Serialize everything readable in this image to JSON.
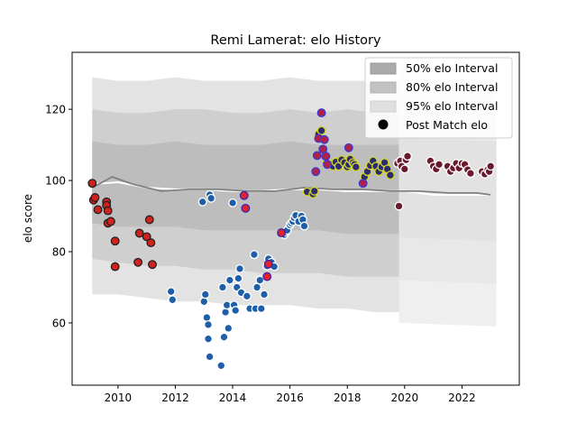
{
  "chart_data": {
    "type": "scatter",
    "title": "Remi Lamerat: elo History",
    "xlabel": "",
    "ylabel": "elo score",
    "xlim": [
      2008.4,
      2024.0
    ],
    "ylim": [
      42.5,
      136.0
    ],
    "xticks": [
      2010,
      2012,
      2014,
      2016,
      2018,
      2020,
      2022
    ],
    "yticks": [
      60,
      80,
      100,
      120
    ],
    "legend": {
      "position": "top-right",
      "entries": [
        "50% elo Interval",
        "80% elo Interval",
        "95% elo Interval",
        "Post Match elo"
      ]
    },
    "bands": [
      {
        "name": "95% elo Interval",
        "x": [
          2009.1,
          2010,
          2011,
          2012,
          2013,
          2014,
          2015,
          2016,
          2017,
          2018,
          2019,
          2019.8
        ],
        "lower": [
          68,
          68,
          67,
          66,
          66,
          65,
          65,
          65,
          64,
          64,
          63,
          63
        ],
        "upper": [
          129,
          128,
          128,
          129,
          128,
          128,
          128,
          129,
          128,
          128,
          128,
          128
        ]
      },
      {
        "name": "80% elo Interval",
        "x": [
          2009.1,
          2010,
          2011,
          2012,
          2013,
          2014,
          2015,
          2016,
          2017,
          2018,
          2019,
          2019.8
        ],
        "lower": [
          78,
          77,
          76,
          76,
          75,
          75,
          74,
          74,
          74,
          73,
          73,
          73
        ],
        "upper": [
          120,
          119,
          119,
          120,
          120,
          119,
          119,
          120,
          119,
          120,
          119,
          119
        ]
      },
      {
        "name": "50% elo Interval",
        "x": [
          2009.1,
          2010,
          2011,
          2012,
          2013,
          2014,
          2015,
          2016,
          2017,
          2018,
          2019,
          2019.8
        ],
        "lower": [
          88,
          87,
          87,
          87,
          86,
          86,
          86,
          86,
          86,
          85,
          85,
          85
        ],
        "upper": [
          111,
          110,
          110,
          111,
          110,
          110,
          110,
          111,
          110,
          110,
          110,
          110
        ]
      }
    ],
    "faint_bands": [
      {
        "x": [
          2019.8,
          2023.2
        ],
        "lower": [
          60,
          59
        ],
        "upper": [
          132,
          131
        ]
      },
      {
        "x": [
          2019.8,
          2023.2
        ],
        "lower": [
          72,
          71
        ],
        "upper": [
          124,
          123
        ]
      },
      {
        "x": [
          2019.8,
          2023.2
        ],
        "lower": [
          84,
          83
        ],
        "upper": [
          112,
          111
        ]
      }
    ],
    "mean_line": {
      "x": [
        2009.1,
        2009.8,
        2010.5,
        2011.5,
        2012.5,
        2013.5,
        2014.5,
        2015.5,
        2016.5,
        2017.5,
        2018.5,
        2019.5,
        2020.5,
        2021.5,
        2022.5,
        2023.0
      ],
      "y": [
        98,
        101,
        99,
        97,
        97.5,
        97.5,
        97,
        97,
        98,
        97.5,
        97.5,
        97,
        97,
        96.5,
        96.5,
        96
      ]
    },
    "mean_line_2": {
      "x": [
        2009.1,
        2010,
        2011,
        2012,
        2013,
        2014,
        2015,
        2016,
        2017,
        2018,
        2019,
        2020,
        2021,
        2022,
        2023.0
      ],
      "y": [
        99,
        99.5,
        98,
        97.5,
        97.5,
        97,
        97,
        97.5,
        97.5,
        97,
        97,
        97,
        96,
        96,
        96
      ]
    },
    "series": [
      {
        "name": "",
        "fill": "#d0211c",
        "edge": "#222222",
        "points": [
          [
            2009.1,
            99.2
          ],
          [
            2009.15,
            94.5
          ],
          [
            2009.2,
            95.2
          ],
          [
            2009.3,
            91.8
          ],
          [
            2009.6,
            94.0
          ],
          [
            2009.6,
            93.0
          ],
          [
            2009.65,
            91.5
          ],
          [
            2009.65,
            88.0
          ],
          [
            2009.75,
            88.5
          ],
          [
            2009.9,
            83.0
          ],
          [
            2009.9,
            75.8
          ],
          [
            2010.7,
            77.0
          ],
          [
            2010.75,
            85.2
          ],
          [
            2011.0,
            84.2
          ],
          [
            2011.1,
            89.0
          ],
          [
            2011.15,
            82.5
          ],
          [
            2011.2,
            76.4
          ]
        ]
      },
      {
        "name": "",
        "fill": "#1f5fa8",
        "edge": "#ffffff",
        "points": [
          [
            2011.85,
            68.8
          ],
          [
            2011.9,
            66.5
          ],
          [
            2012.95,
            94.0
          ],
          [
            2013.0,
            66.0
          ],
          [
            2013.05,
            68.0
          ],
          [
            2013.1,
            61.5
          ],
          [
            2013.15,
            59.5
          ],
          [
            2013.15,
            55.5
          ],
          [
            2013.2,
            96.0
          ],
          [
            2013.2,
            50.5
          ],
          [
            2013.25,
            95.0
          ],
          [
            2013.6,
            48.0
          ],
          [
            2013.65,
            70.0
          ],
          [
            2013.7,
            56.0
          ],
          [
            2013.75,
            63.0
          ],
          [
            2013.8,
            65.0
          ],
          [
            2013.85,
            58.5
          ],
          [
            2013.9,
            72.0
          ],
          [
            2014.0,
            93.7
          ],
          [
            2014.05,
            65.0
          ],
          [
            2014.1,
            63.5
          ],
          [
            2014.15,
            70.0
          ],
          [
            2014.2,
            72.5
          ],
          [
            2014.25,
            75.2
          ],
          [
            2014.3,
            68.5
          ],
          [
            2014.5,
            67.5
          ],
          [
            2014.6,
            64.0
          ],
          [
            2014.75,
            79.2
          ],
          [
            2014.8,
            64.0
          ],
          [
            2014.85,
            70.0
          ],
          [
            2014.95,
            72.0
          ],
          [
            2015.0,
            64.0
          ],
          [
            2015.1,
            68.0
          ],
          [
            2015.2,
            76.0
          ],
          [
            2015.25,
            78.0
          ],
          [
            2015.35,
            77.0
          ],
          [
            2015.45,
            75.8
          ],
          [
            2015.8,
            84.8
          ],
          [
            2015.85,
            85.5
          ],
          [
            2015.9,
            86.0
          ],
          [
            2016.0,
            87.5
          ],
          [
            2016.05,
            88.0
          ],
          [
            2016.1,
            88.5
          ],
          [
            2016.15,
            89.5
          ],
          [
            2016.2,
            90.2
          ],
          [
            2016.3,
            88.5
          ],
          [
            2016.4,
            90.0
          ],
          [
            2016.45,
            89.0
          ],
          [
            2016.5,
            87.2
          ]
        ]
      },
      {
        "name": "",
        "fill": "#e2232a",
        "edge": "#3d22b0",
        "points": [
          [
            2014.4,
            95.8
          ],
          [
            2014.45,
            92.2
          ],
          [
            2015.2,
            73.0
          ],
          [
            2015.25,
            76.5
          ],
          [
            2015.7,
            85.3
          ]
        ]
      },
      {
        "name": "",
        "fill": "#2a2c6b",
        "edge": "#d6d629",
        "points": [
          [
            2016.6,
            96.8
          ],
          [
            2016.8,
            96.2
          ],
          [
            2016.85,
            97.0
          ],
          [
            2017.0,
            113.0
          ],
          [
            2017.1,
            114.0
          ],
          [
            2017.3,
            105.0
          ],
          [
            2017.4,
            104.5
          ],
          [
            2017.5,
            104.0
          ],
          [
            2017.6,
            105.2
          ],
          [
            2017.7,
            104.0
          ],
          [
            2017.8,
            105.8
          ],
          [
            2017.9,
            105.0
          ],
          [
            2018.0,
            103.8
          ],
          [
            2018.05,
            104.5
          ],
          [
            2018.1,
            106.0
          ],
          [
            2018.2,
            105.0
          ],
          [
            2018.25,
            104.5
          ],
          [
            2018.3,
            103.8
          ],
          [
            2018.6,
            101.0
          ],
          [
            2018.7,
            102.5
          ],
          [
            2018.8,
            104.2
          ],
          [
            2018.9,
            105.5
          ],
          [
            2019.0,
            104.0
          ],
          [
            2019.1,
            102.5
          ],
          [
            2019.2,
            103.8
          ],
          [
            2019.3,
            105.0
          ],
          [
            2019.4,
            103.2
          ],
          [
            2019.5,
            101.5
          ]
        ]
      },
      {
        "name": "",
        "fill": "#b0204a",
        "edge": "#3a3ad0",
        "points": [
          [
            2016.9,
            102.5
          ],
          [
            2016.95,
            107.0
          ],
          [
            2017.0,
            111.8
          ],
          [
            2017.1,
            119.0
          ],
          [
            2017.15,
            108.8
          ],
          [
            2017.2,
            111.5
          ],
          [
            2017.25,
            106.8
          ],
          [
            2017.3,
            104.5
          ],
          [
            2018.05,
            109.2
          ],
          [
            2018.55,
            99.2
          ]
        ]
      },
      {
        "name": "",
        "fill": "#6b1a2e",
        "edge": "#ffffff",
        "points": [
          [
            2019.75,
            104.8
          ],
          [
            2019.8,
            92.8
          ],
          [
            2019.85,
            105.5
          ],
          [
            2019.9,
            104.0
          ],
          [
            2020.0,
            103.2
          ],
          [
            2020.05,
            105.8
          ],
          [
            2020.1,
            106.8
          ],
          [
            2020.9,
            105.5
          ],
          [
            2021.0,
            104.0
          ],
          [
            2021.1,
            103.2
          ],
          [
            2021.2,
            104.5
          ],
          [
            2021.5,
            104.0
          ],
          [
            2021.6,
            102.5
          ],
          [
            2021.7,
            103.5
          ],
          [
            2021.8,
            104.8
          ],
          [
            2021.9,
            103.5
          ],
          [
            2022.0,
            104.8
          ],
          [
            2022.1,
            104.5
          ],
          [
            2022.2,
            103.0
          ],
          [
            2022.3,
            102.0
          ],
          [
            2022.7,
            102.5
          ],
          [
            2022.8,
            101.8
          ],
          [
            2022.9,
            103.0
          ],
          [
            2022.95,
            102.5
          ],
          [
            2023.0,
            104.0
          ]
        ]
      }
    ]
  }
}
